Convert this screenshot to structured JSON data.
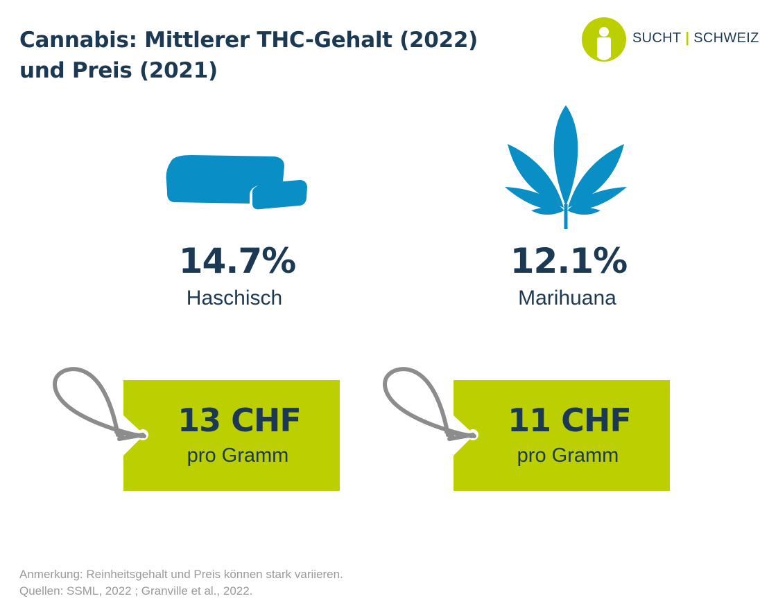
{
  "title": {
    "line1": "Cannabis: Mittlerer THC-Gehalt (2022)",
    "line2": "und Preis (2021)"
  },
  "logo": {
    "part1": "SUCHT",
    "separator": "|",
    "part2": "SCHWEIZ"
  },
  "stats": [
    {
      "value": "14.7%",
      "label": "Haschisch",
      "icon": "hashish-block-icon"
    },
    {
      "value": "12.1%",
      "label": "Marihuana",
      "icon": "cannabis-leaf-icon"
    }
  ],
  "price_tags": [
    {
      "price": "13 CHF",
      "unit": "pro Gramm"
    },
    {
      "price": "11 CHF",
      "unit": "pro Gramm"
    }
  ],
  "footnote": {
    "note": "Anmerkung: Reinheitsgehalt und Preis können stark variieren.",
    "sources": "Quellen: SSML, 2022 ; Granville et al., 2022."
  },
  "colors": {
    "navy": "#1c3954",
    "blue": "#0a8ec6",
    "lime": "#bccf00",
    "gray": "#9a9a9a",
    "string": "#8c8c8c"
  }
}
